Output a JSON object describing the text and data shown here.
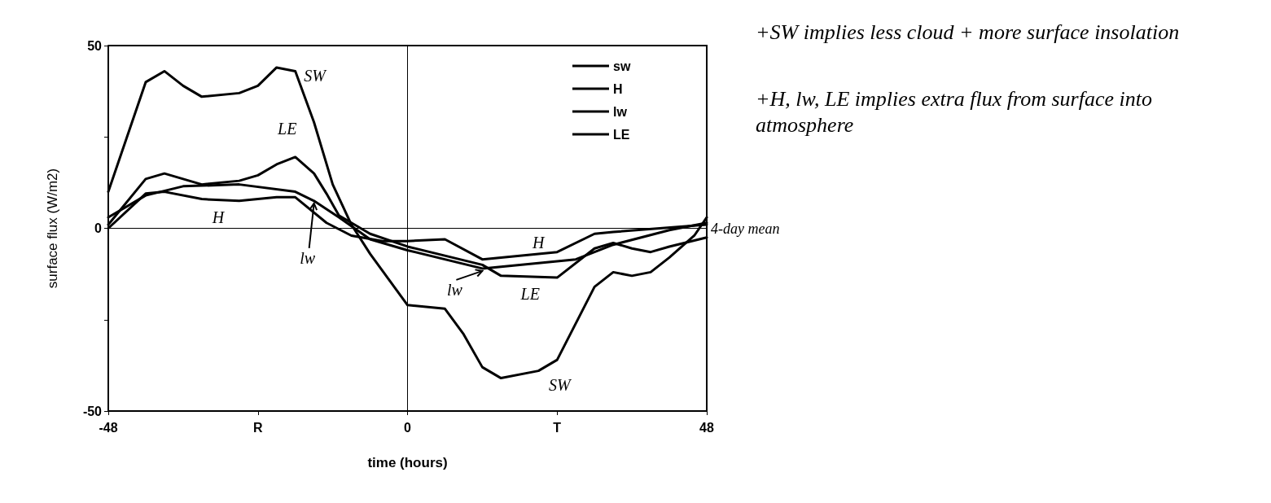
{
  "chart_data": {
    "type": "line",
    "xlabel": "time (hours)",
    "ylabel": "surface flux (W/m2)",
    "xlim": [
      -48,
      48
    ],
    "xticks": [
      -48,
      {
        "value": -24,
        "label": "R"
      },
      0,
      {
        "value": 24,
        "label": "T"
      },
      48
    ],
    "ylim": [
      -50,
      50
    ],
    "yticks": [
      -50,
      {
        "value": -25,
        "label": null
      },
      0,
      {
        "value": 25,
        "label": null
      },
      50
    ],
    "grid": false,
    "legend": "top right",
    "marker": "none",
    "line_style": "solid",
    "series": [
      {
        "name": "sw",
        "color": "#000000",
        "x": [
          -48,
          -42,
          -39,
          -36,
          -33,
          -27,
          -24,
          -21,
          -18,
          -15,
          -12,
          -9,
          -6,
          -3,
          0,
          6,
          9,
          12,
          15,
          21,
          24,
          30,
          33,
          36,
          39,
          42,
          46,
          48
        ],
        "values": [
          10,
          40,
          43,
          39,
          36,
          37,
          39,
          44,
          43,
          29,
          12,
          1,
          -7,
          -14,
          -21,
          -22,
          -29,
          -38,
          -41,
          -39,
          -36,
          -16,
          -12,
          -13,
          -12,
          -8,
          -2,
          3
        ]
      },
      {
        "name": "H",
        "color": "#000000",
        "x": [
          -48,
          -42,
          -39,
          -33,
          -27,
          -21,
          -18,
          -13,
          -9,
          -4,
          0,
          6,
          12,
          24,
          30,
          33,
          48
        ],
        "values": [
          0,
          9.5,
          10,
          8,
          7.5,
          8.5,
          8.5,
          1.5,
          -2,
          -3.5,
          -3.5,
          -3,
          -8.5,
          -6.5,
          -1.5,
          -1,
          1
        ]
      },
      {
        "name": "lw",
        "color": "#000000",
        "x": [
          -48,
          -42,
          -36,
          -27,
          -18,
          -15,
          -11,
          -6,
          0,
          12,
          27,
          33,
          42,
          48
        ],
        "values": [
          3,
          9,
          11.5,
          12,
          10,
          7.5,
          3,
          -3,
          -6,
          -11,
          -8.5,
          -4.5,
          -0.5,
          1.5
        ]
      },
      {
        "name": "LE",
        "color": "#000000",
        "x": [
          -48,
          -42,
          -39,
          -33,
          -27,
          -24,
          -21,
          -18,
          -15,
          -13,
          -11,
          -6,
          0,
          12,
          15,
          24,
          30,
          33,
          36,
          39,
          42,
          48
        ],
        "values": [
          1,
          13.5,
          15,
          12,
          13,
          14.5,
          17.5,
          19.5,
          15,
          9.5,
          3.5,
          -1.5,
          -5,
          -10,
          -13,
          -13.5,
          -5.5,
          -4,
          -5.5,
          -6.5,
          -5,
          -2.5
        ]
      }
    ],
    "ref_lines": [
      {
        "axis": "y",
        "value": 0,
        "label": "4-day mean"
      },
      {
        "axis": "x",
        "value": 0,
        "label": null
      }
    ],
    "annotations": [
      "+SW implies less cloud + more surface insolation",
      "+H, lw, LE implies extra flux from surface into atmosphere",
      {
        "text": "SW",
        "x": -18,
        "y": 43
      },
      {
        "text": "LE",
        "x": -18,
        "y": 19.5
      },
      {
        "text": "H",
        "x": -33,
        "y": 8
      },
      {
        "text": "lw",
        "x": -15,
        "y": 7.5
      },
      {
        "text": "H",
        "x": 24,
        "y": -6.5
      },
      {
        "text": "lw",
        "x": 12,
        "y": -11
      },
      {
        "text": "LE",
        "x": 24,
        "y": -13.5
      },
      {
        "text": "SW",
        "x": 21,
        "y": -39
      }
    ]
  }
}
